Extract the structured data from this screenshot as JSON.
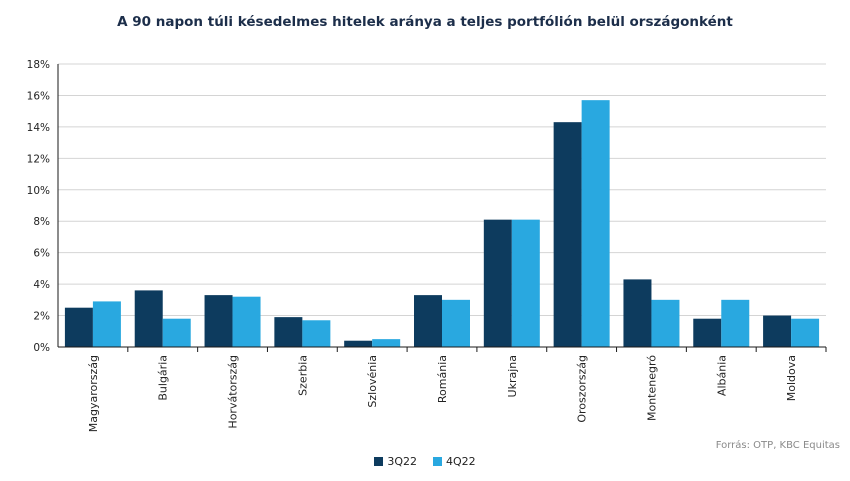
{
  "chart_data": {
    "type": "bar",
    "title": "A 90 napon túli késedelmes hitelek aránya a teljes portfólión belül országonként",
    "categories": [
      "Magyarország",
      "Bulgária",
      "Horvátország",
      "Szerbia",
      "Szlovénia",
      "Románia",
      "Ukrajna",
      "Oroszország",
      "Montenegró",
      "Albánia",
      "Moldova"
    ],
    "series": [
      {
        "name": "3Q22",
        "color": "#0d3b5e",
        "values": [
          2.5,
          3.6,
          3.3,
          1.9,
          0.4,
          3.3,
          8.1,
          14.3,
          4.3,
          1.8,
          2.0
        ]
      },
      {
        "name": "4Q22",
        "color": "#29a8e0",
        "values": [
          2.9,
          1.8,
          3.2,
          1.7,
          0.5,
          3.0,
          8.1,
          15.7,
          3.0,
          3.0,
          1.8
        ]
      }
    ],
    "ylim": [
      0,
      18
    ],
    "yticks": [
      "0%",
      "2%",
      "4%",
      "6%",
      "8%",
      "10%",
      "12%",
      "14%",
      "16%",
      "18%"
    ],
    "ytick_values": [
      0,
      2,
      4,
      6,
      8,
      10,
      12,
      14,
      16,
      18
    ],
    "grid": true,
    "legend": "bottom-center",
    "source": "Forrás: OTP, KBC Equitas"
  }
}
